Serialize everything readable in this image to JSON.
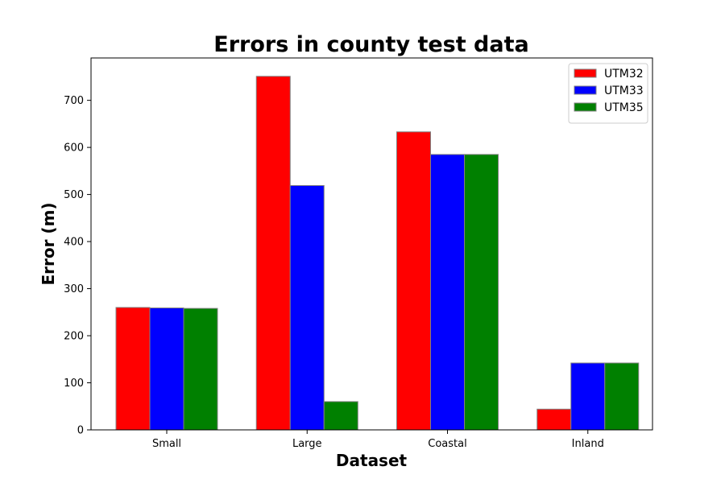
{
  "chart_data": {
    "type": "bar",
    "title": "Errors in county test data",
    "xlabel": "Dataset",
    "ylabel": "Error (m)",
    "categories": [
      "Small",
      "Large",
      "Coastal",
      "Inland"
    ],
    "series": [
      {
        "name": "UTM32",
        "color": "#ff0000",
        "values": [
          260,
          751,
          633,
          44
        ]
      },
      {
        "name": "UTM33",
        "color": "#0000ff",
        "values": [
          259,
          519,
          585,
          142
        ]
      },
      {
        "name": "UTM35",
        "color": "#008000",
        "values": [
          258,
          60,
          585,
          142
        ]
      }
    ],
    "ylim": [
      0,
      790
    ],
    "yticks": [
      0,
      100,
      200,
      300,
      400,
      500,
      600,
      700
    ],
    "grid": false,
    "legend_position": "top-right",
    "bar_edge_color": "#808080"
  }
}
